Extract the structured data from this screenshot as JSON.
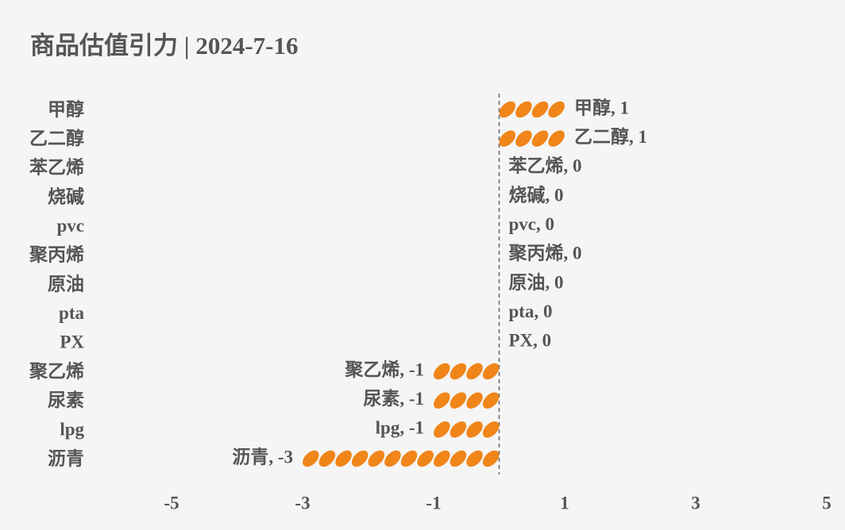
{
  "chart_data": {
    "type": "bar",
    "title": "商品估值引力 | 2024-7-16",
    "categories": [
      "甲醇",
      "乙二醇",
      "苯乙烯",
      "烧碱",
      "pvc",
      "聚丙烯",
      "原油",
      "pta",
      "PX",
      "聚乙烯",
      "尿素",
      "lpg",
      "沥青"
    ],
    "values": [
      1,
      1,
      0,
      0,
      0,
      0,
      0,
      0,
      0,
      -1,
      -1,
      -1,
      -3
    ],
    "value_labels": [
      "甲醇, 1",
      "乙二醇, 1",
      "苯乙烯, 0",
      "烧碱, 0",
      "pvc, 0",
      "聚丙烯, 0",
      "原油, 0",
      "pta, 0",
      "PX, 0",
      "聚乙烯, -1",
      "尿素, -1",
      "lpg, -1",
      "沥青, -3"
    ],
    "color": "#f08519",
    "xlim": [
      -5,
      5
    ],
    "xticks": [
      -5,
      -3,
      -1,
      1,
      3,
      5
    ]
  }
}
